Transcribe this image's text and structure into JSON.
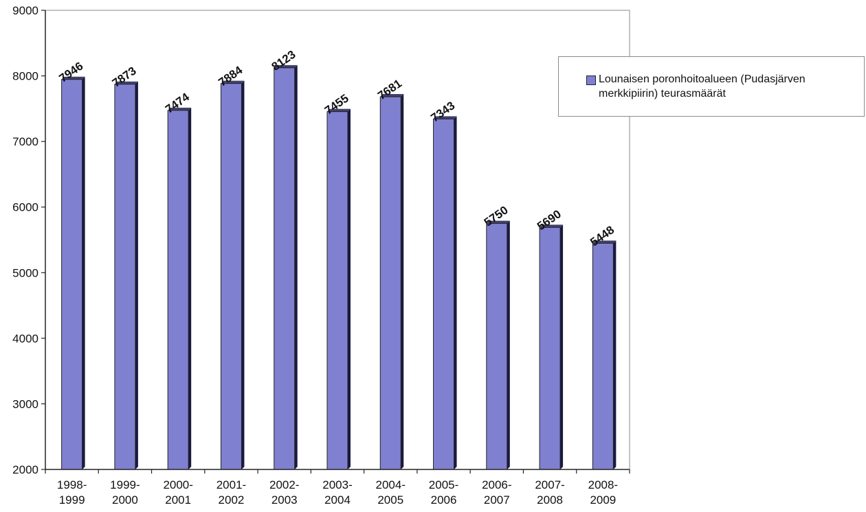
{
  "chart_data": {
    "type": "bar",
    "categories": [
      [
        "1998-",
        "1999"
      ],
      [
        "1999-",
        "2000"
      ],
      [
        "2000-",
        "2001"
      ],
      [
        "2001-",
        "2002"
      ],
      [
        "2002-",
        "2003"
      ],
      [
        "2003-",
        "2004"
      ],
      [
        "2004-",
        "2005"
      ],
      [
        "2005-",
        "2006"
      ],
      [
        "2006-",
        "2007"
      ],
      [
        "2007-",
        "2008"
      ],
      [
        "2008-",
        "2009"
      ]
    ],
    "series": [
      {
        "name": "Lounaisen poronhoitoalueen (Pudasjärven merkkipiirin) teurasmäärät",
        "values": [
          7946,
          7873,
          7474,
          7884,
          8123,
          7455,
          7681,
          7343,
          5750,
          5690,
          5448
        ],
        "color": "#8080d0"
      }
    ],
    "yticks": [
      2000,
      3000,
      4000,
      5000,
      6000,
      7000,
      8000,
      9000
    ],
    "ylim": [
      2000,
      9000
    ],
    "legend_position": "right",
    "grid": false
  }
}
